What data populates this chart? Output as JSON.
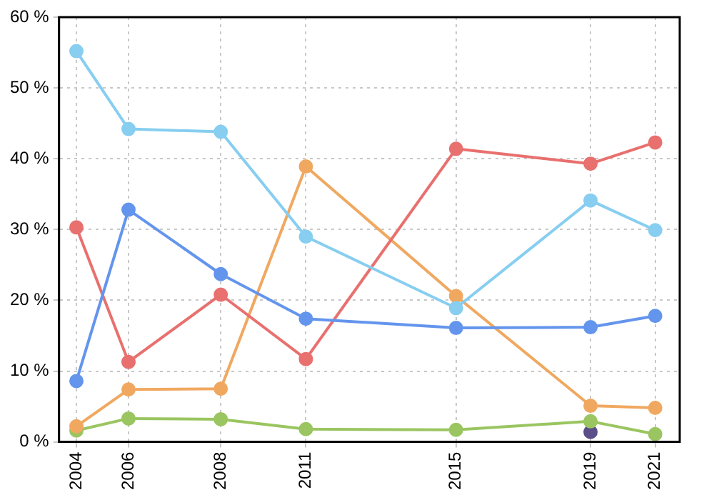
{
  "chart_data": {
    "type": "line",
    "x": [
      2004,
      2005.53,
      2008.24,
      2010.74,
      2015.15,
      2019.1,
      2021
    ],
    "series": [
      {
        "color": "#87cef0",
        "values": [
          55.2,
          44.2,
          43.8,
          29.0,
          18.9,
          34.1,
          29.9
        ]
      },
      {
        "color": "#6495ed",
        "values": [
          8.6,
          32.8,
          23.7,
          17.4,
          16.1,
          16.2,
          17.8
        ]
      },
      {
        "color": "#e8706e",
        "values": [
          30.3,
          11.3,
          20.8,
          11.7,
          41.4,
          39.3,
          42.3
        ]
      },
      {
        "color": "#f0a860",
        "values": [
          2.2,
          7.4,
          7.5,
          38.9,
          20.6,
          5.1,
          4.8
        ]
      },
      {
        "color": "#9ac560",
        "values": [
          1.6,
          3.3,
          3.2,
          1.8,
          1.7,
          2.9,
          1.1
        ]
      },
      {
        "type": "scatter",
        "color": "#5b4f8a",
        "x": [
          2019.1
        ],
        "values": [
          1.4
        ]
      }
    ],
    "xlim": [
      2003.49,
      2021.72
    ],
    "xticks": [
      {
        "value": 2004,
        "label": "2004"
      },
      {
        "value": 2005.53,
        "label": "2006"
      },
      {
        "value": 2008.24,
        "label": "2008"
      },
      {
        "value": 2010.74,
        "label": "2011"
      },
      {
        "value": 2015.15,
        "label": "2015"
      },
      {
        "value": 2019.1,
        "label": "2019"
      },
      {
        "value": 2021,
        "label": "2021"
      }
    ],
    "ylim": [
      0,
      60
    ],
    "yticks": [
      {
        "value": 0,
        "label": "0 %"
      },
      {
        "value": 10,
        "label": "10 %"
      },
      {
        "value": 20,
        "label": "20 %"
      },
      {
        "value": 30,
        "label": "30 %"
      },
      {
        "value": 40,
        "label": "40 %"
      },
      {
        "value": 50,
        "label": "50 %"
      },
      {
        "value": 60,
        "label": "60 %"
      }
    ],
    "grid": true,
    "legend": false,
    "marker": "circle",
    "line_style": "solid"
  }
}
